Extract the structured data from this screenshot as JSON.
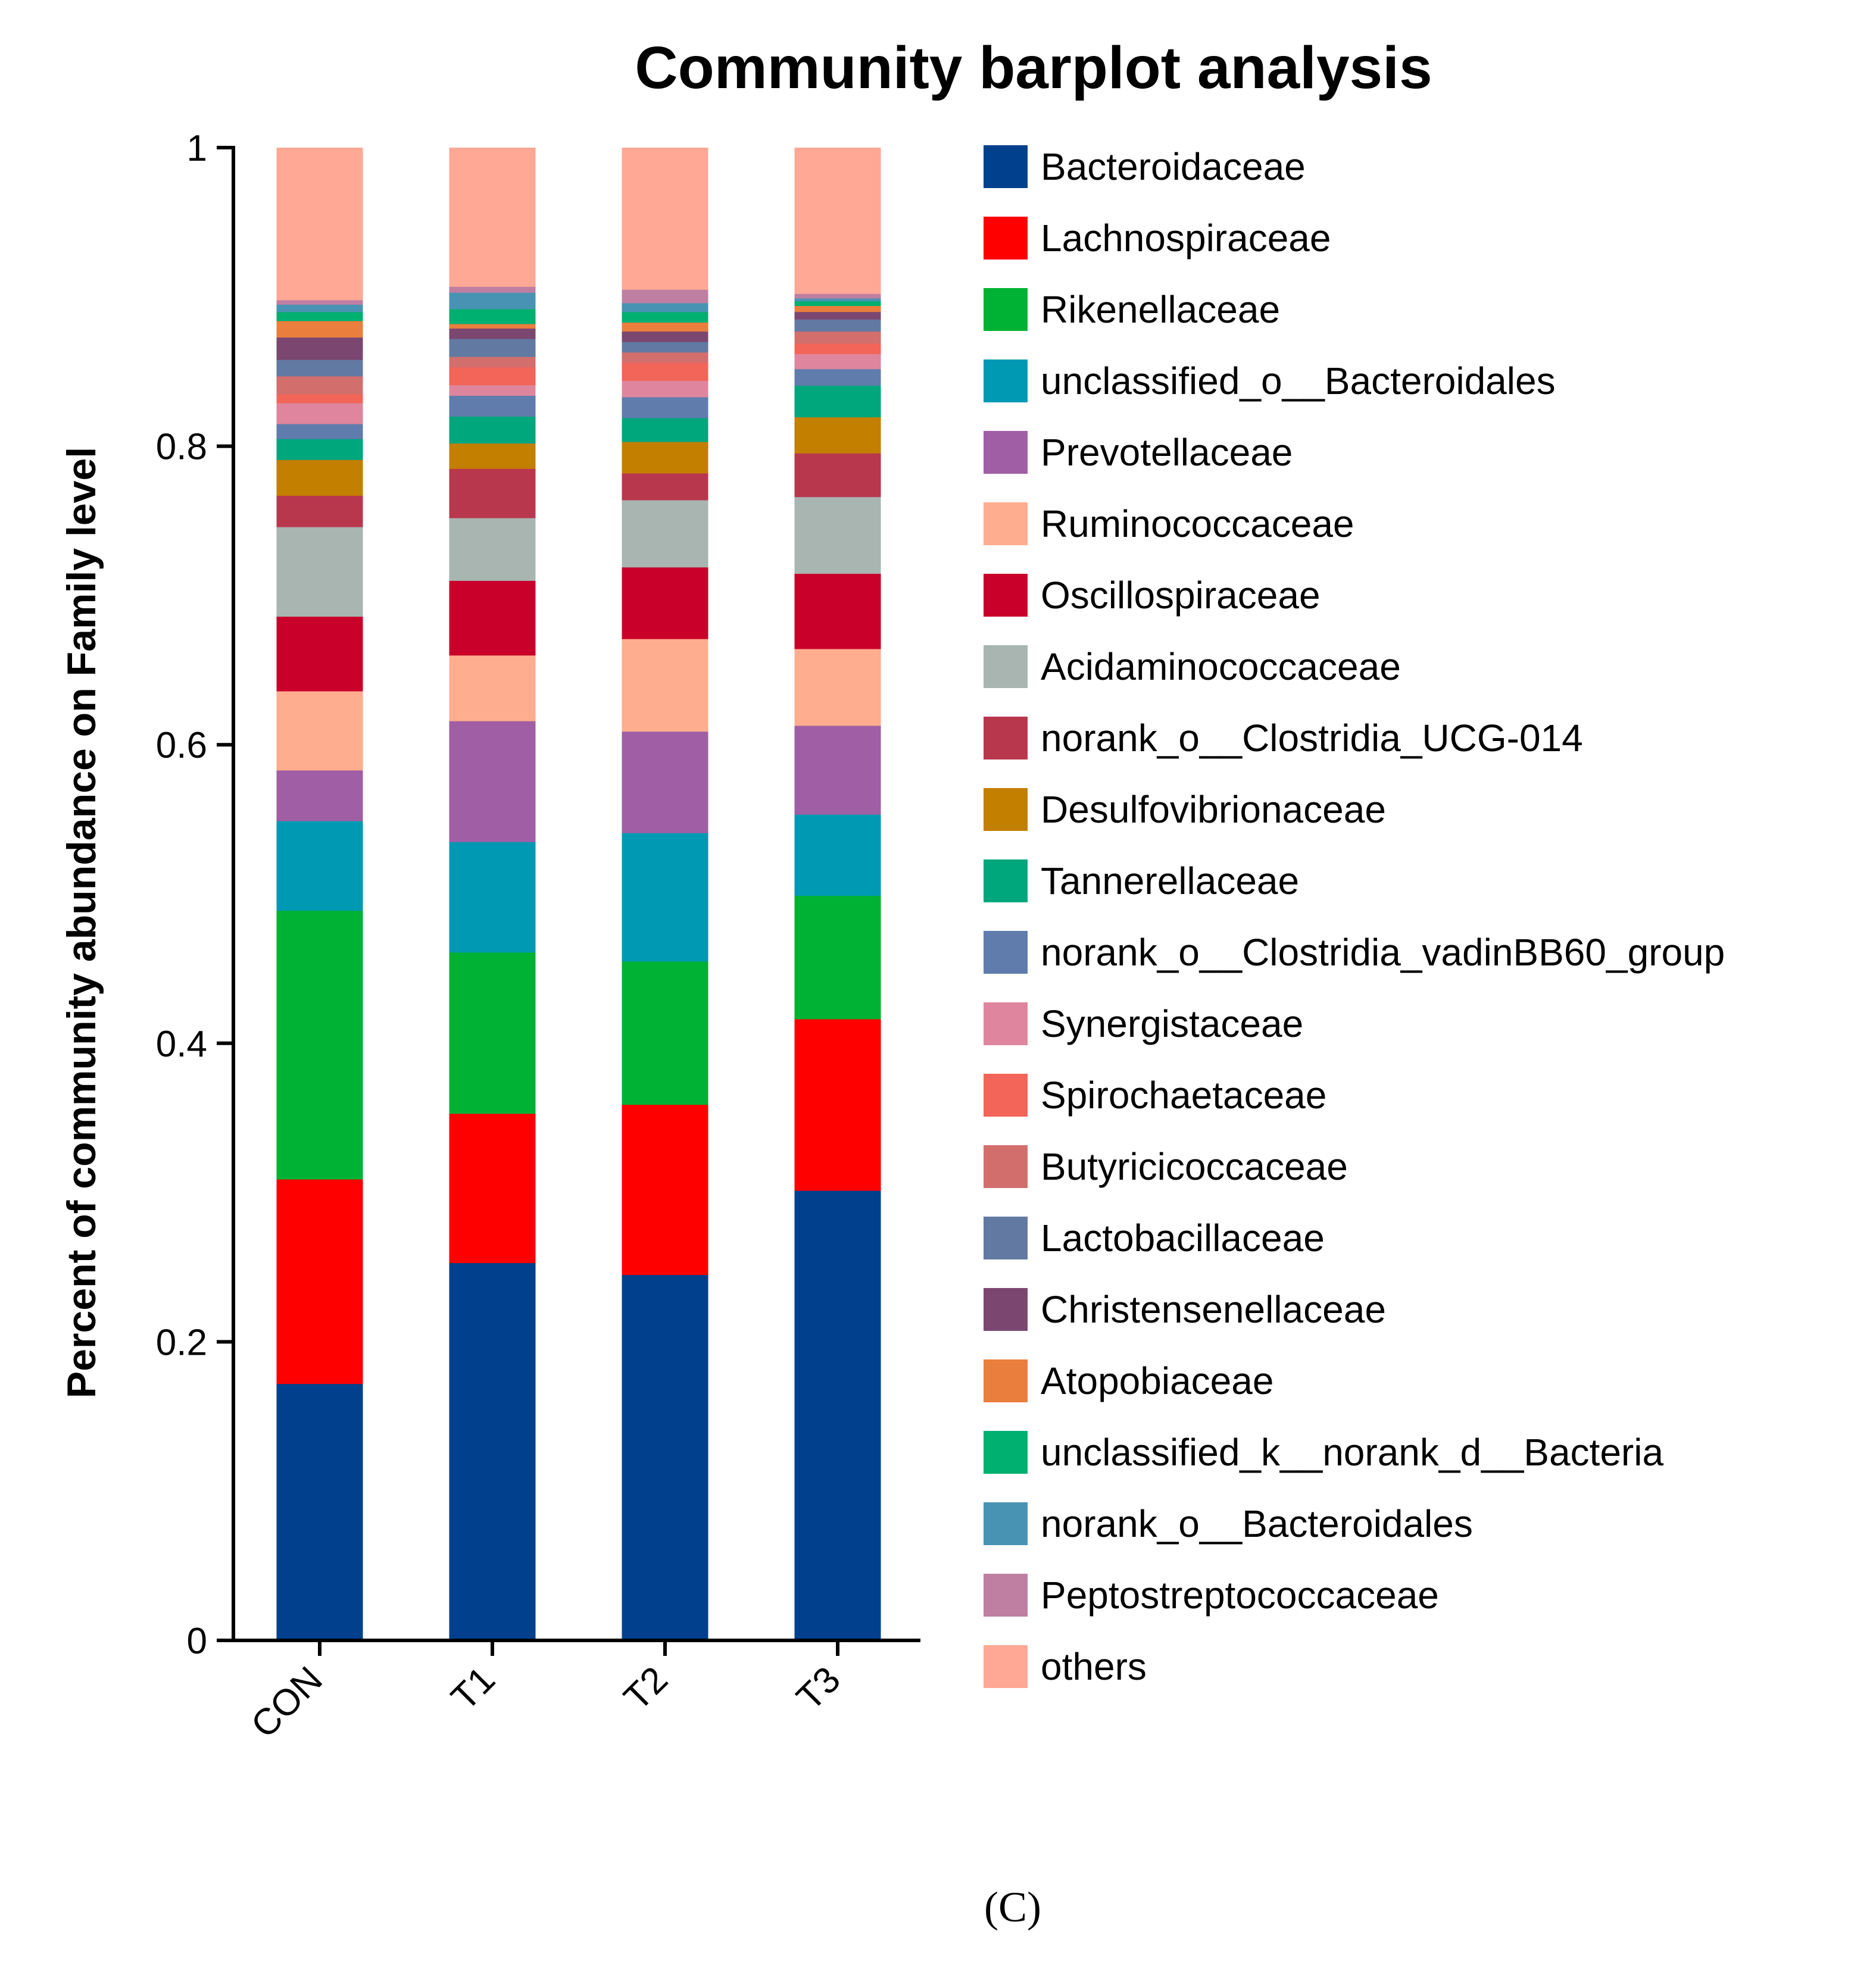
{
  "chart_data": {
    "type": "bar",
    "stacked": true,
    "title": "Community barplot analysis",
    "xlabel": "",
    "ylabel": "Percent of community abundance on Family level",
    "ylim": [
      0,
      1
    ],
    "yticks": [
      0,
      0.2,
      0.4,
      0.6,
      0.8,
      1
    ],
    "ytick_labels": [
      "0",
      "0.2",
      "0.4",
      "0.6",
      "0.8",
      "1"
    ],
    "categories": [
      "CON",
      "T1",
      "T2",
      "T3"
    ],
    "legend_position": "right",
    "grid": false,
    "series": [
      {
        "name": "Bacteroidaceae",
        "color": "#00408C",
        "values": [
          0.172,
          0.253,
          0.245,
          0.299
        ]
      },
      {
        "name": "Lachnospiraceae",
        "color": "#FF0000",
        "values": [
          0.137,
          0.1,
          0.114,
          0.114
        ]
      },
      {
        "name": "Rikenellaceae",
        "color": "#00B233",
        "values": [
          0.18,
          0.108,
          0.096,
          0.082
        ]
      },
      {
        "name": "unclassified_o__Bacteroidales",
        "color": "#0099B3",
        "values": [
          0.06,
          0.074,
          0.086,
          0.054
        ]
      },
      {
        "name": "Prevotellaceae",
        "color": "#A05FA5",
        "values": [
          0.034,
          0.081,
          0.068,
          0.059
        ]
      },
      {
        "name": "Ruminococcaceae",
        "color": "#FFAD8E",
        "values": [
          0.053,
          0.044,
          0.062,
          0.051
        ]
      },
      {
        "name": "Oscillospiraceae",
        "color": "#C8002A",
        "values": [
          0.05,
          0.05,
          0.048,
          0.05
        ]
      },
      {
        "name": "Acidaminococcaceae",
        "color": "#A8B5B1",
        "values": [
          0.06,
          0.042,
          0.045,
          0.051
        ]
      },
      {
        "name": "norank_o__Clostridia_UCG-014",
        "color": "#B9374D",
        "values": [
          0.021,
          0.033,
          0.018,
          0.029
        ]
      },
      {
        "name": "Desulfovibrionaceae",
        "color": "#C37F00",
        "values": [
          0.024,
          0.017,
          0.021,
          0.024
        ]
      },
      {
        "name": "Tannerellaceae",
        "color": "#00A67C",
        "values": [
          0.014,
          0.018,
          0.016,
          0.021
        ]
      },
      {
        "name": "norank_o__Clostridia_vadinBB60_group",
        "color": "#5F7CAD",
        "values": [
          0.01,
          0.014,
          0.014,
          0.011
        ]
      },
      {
        "name": "Synergistaceae",
        "color": "#DF869E",
        "values": [
          0.014,
          0.007,
          0.011,
          0.01
        ]
      },
      {
        "name": "Spirochaetaceae",
        "color": "#F26558",
        "values": [
          0.006,
          0.012,
          0.012,
          0.007
        ]
      },
      {
        "name": "Butyricicoccaceae",
        "color": "#D26F6D",
        "values": [
          0.012,
          0.007,
          0.007,
          0.008
        ]
      },
      {
        "name": "Lactobacillaceae",
        "color": "#6279A2",
        "values": [
          0.011,
          0.012,
          0.007,
          0.008
        ]
      },
      {
        "name": "Christensenellaceae",
        "color": "#7B4771",
        "values": [
          0.015,
          0.007,
          0.007,
          0.005
        ]
      },
      {
        "name": "Atopobiaceae",
        "color": "#EA7E3C",
        "values": [
          0.011,
          0.003,
          0.006,
          0.004
        ]
      },
      {
        "name": "unclassified_k__norank_d__Bacteria",
        "color": "#00B070",
        "values": [
          0.006,
          0.01,
          0.007,
          0.003
        ]
      },
      {
        "name": "norank_o__Bacteroidales",
        "color": "#4893B4",
        "values": [
          0.005,
          0.011,
          0.006,
          0.002
        ]
      },
      {
        "name": "Peptostreptococcaceae",
        "color": "#BF7FA2",
        "values": [
          0.003,
          0.004,
          0.009,
          0.003
        ]
      },
      {
        "name": "others",
        "color": "#FFA896",
        "values": [
          0.102,
          0.093,
          0.095,
          0.097
        ]
      }
    ]
  },
  "panel_label": "(C)"
}
